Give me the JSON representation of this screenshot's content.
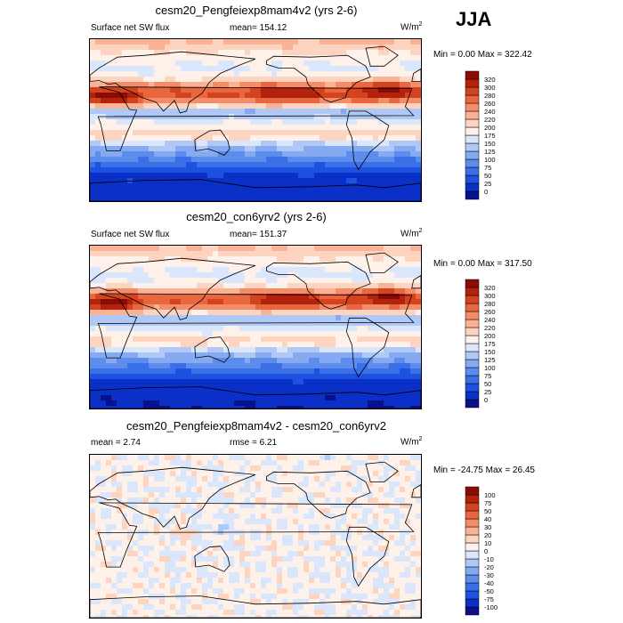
{
  "season": "JJA",
  "panels": [
    {
      "title": "cesm20_Pengfeiexp8mam4v2 (yrs 2-6)",
      "left_label": "Surface net SW flux",
      "center_label": "mean= 154.12",
      "unit": "W/m",
      "unit_sup": "2",
      "minmax": "Min =   0.00 Max = 322.42"
    },
    {
      "title": "cesm20_con6yrv2 (yrs 2-6)",
      "left_label": "Surface net SW flux",
      "center_label": "mean= 151.37",
      "unit": "W/m",
      "unit_sup": "2",
      "minmax": "Min =   0.00 Max = 317.50"
    },
    {
      "title": "cesm20_Pengfeiexp8mam4v2 - cesm20_con6yrv2",
      "left_label": "mean =   2.74",
      "center_label": "rmse =   6.21",
      "unit": "W/m",
      "unit_sup": "2",
      "minmax": "Min = -24.75 Max =  26.45"
    }
  ],
  "chart_data": [
    {
      "type": "heatmap",
      "title": "cesm20_Pengfeiexp8mam4v2 (yrs 2-6)",
      "variable": "Surface net SW flux",
      "units": "W/m2",
      "mean": 154.12,
      "min": 0.0,
      "max": 322.42,
      "colorbar_levels": [
        0,
        25,
        50,
        75,
        100,
        125,
        150,
        175,
        200,
        220,
        240,
        260,
        280,
        300,
        320
      ],
      "colorbar_colors": [
        "#08108a",
        "#0a30c8",
        "#1d52e0",
        "#3b6fe6",
        "#5c8cec",
        "#86aaf2",
        "#b0c8f6",
        "#d9e6fb",
        "#fdf1ea",
        "#fcd4c0",
        "#f9b294",
        "#f38d69",
        "#e8673f",
        "#d44320",
        "#b3220d",
        "#8a0c04"
      ]
    },
    {
      "type": "heatmap",
      "title": "cesm20_con6yrv2 (yrs 2-6)",
      "variable": "Surface net SW flux",
      "units": "W/m2",
      "mean": 151.37,
      "min": 0.0,
      "max": 317.5,
      "colorbar_levels": [
        0,
        25,
        50,
        75,
        100,
        125,
        150,
        175,
        200,
        220,
        240,
        260,
        280,
        300,
        320
      ],
      "colorbar_colors": [
        "#08108a",
        "#0a30c8",
        "#1d52e0",
        "#3b6fe6",
        "#5c8cec",
        "#86aaf2",
        "#b0c8f6",
        "#d9e6fb",
        "#fdf1ea",
        "#fcd4c0",
        "#f9b294",
        "#f38d69",
        "#e8673f",
        "#d44320",
        "#b3220d",
        "#8a0c04"
      ]
    },
    {
      "type": "heatmap",
      "title": "cesm20_Pengfeiexp8mam4v2 - cesm20_con6yrv2",
      "units": "W/m2",
      "mean": 2.74,
      "rmse": 6.21,
      "min": -24.75,
      "max": 26.45,
      "colorbar_levels": [
        -100,
        -75,
        -50,
        -40,
        -30,
        -20,
        -10,
        0,
        10,
        20,
        30,
        40,
        50,
        75,
        100
      ],
      "colorbar_colors": [
        "#08108a",
        "#0a30c8",
        "#1d52e0",
        "#3b6fe6",
        "#5c8cec",
        "#86aaf2",
        "#b0c8f6",
        "#d9e6fb",
        "#fdf1ea",
        "#fcd4c0",
        "#f9b294",
        "#f38d69",
        "#e8673f",
        "#d44320",
        "#b3220d",
        "#8a0c04"
      ]
    }
  ]
}
